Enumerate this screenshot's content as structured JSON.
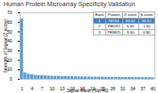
{
  "chart_data": {
    "type": "bar",
    "title": "Human Protein Microarray Specificity Validation",
    "x_label": "Signal Rank (Top 40)",
    "y_label": "Strength of Signal (Z score)",
    "categories": [
      1,
      null,
      null,
      4,
      null,
      null,
      7,
      null,
      null,
      10,
      null,
      null,
      13,
      null,
      null,
      16,
      null,
      null,
      19,
      null,
      null,
      22,
      null,
      null,
      25,
      null,
      null,
      28,
      null,
      null,
      31,
      null,
      null,
      34,
      null,
      null,
      37,
      null,
      null,
      40
    ],
    "values": [
      63.42,
      6.9,
      5.4,
      4.6,
      4.2,
      3.9,
      3.7,
      3.5,
      3.3,
      3.2,
      3.1,
      3.0,
      2.9,
      2.8,
      2.7,
      2.7,
      2.6,
      2.5,
      2.5,
      2.4,
      2.4,
      2.3,
      2.3,
      2.2,
      2.2,
      2.1,
      2.1,
      2.0,
      2.0,
      2.0,
      1.9,
      1.9,
      1.9,
      1.8,
      1.8,
      1.8,
      1.7,
      1.7,
      1.7,
      1.6
    ],
    "color": "#5b9bd5",
    "ylim": [
      0,
      70
    ],
    "yticks": [
      0,
      10,
      20,
      30,
      40,
      50,
      60,
      70
    ],
    "grid": false
  },
  "inset_table": {
    "header": [
      "Rank",
      "Protein",
      "Z score",
      "S score"
    ],
    "rows": [
      [
        "1",
        "NOX4",
        "63.42",
        "56.52"
      ],
      [
        "2",
        "PRDX1",
        "6.90",
        "1.50"
      ],
      [
        "3",
        "TRIM21",
        "5.40",
        "0.80"
      ]
    ]
  }
}
